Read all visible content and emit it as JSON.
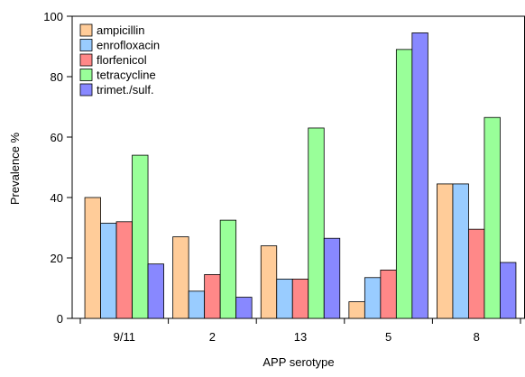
{
  "chart_data": {
    "type": "bar",
    "title": "",
    "xlabel": "APP serotype",
    "ylabel": "Prevalence %",
    "ylim": [
      0,
      100
    ],
    "yticks": [
      0,
      20,
      40,
      60,
      80,
      100
    ],
    "grid": false,
    "legend_position": "top-left",
    "categories": [
      "9/11",
      "2",
      "13",
      "5",
      "8"
    ],
    "series": [
      {
        "name": "ampicillin",
        "color": "#FFCC99",
        "values": [
          40,
          27,
          24,
          5.5,
          44.5
        ]
      },
      {
        "name": "enrofloxacin",
        "color": "#99CCFF",
        "values": [
          31.5,
          9,
          13,
          13.5,
          44.5
        ]
      },
      {
        "name": "florfenicol",
        "color": "#FF8888",
        "values": [
          32,
          14.5,
          13,
          16,
          29.5
        ]
      },
      {
        "name": "tetracycline",
        "color": "#99FF99",
        "values": [
          54,
          32.5,
          63,
          89,
          66.5
        ]
      },
      {
        "name": "trimet./sulf.",
        "color": "#8888FF",
        "values": [
          18,
          7,
          26.5,
          94.5,
          18.5
        ]
      }
    ]
  }
}
